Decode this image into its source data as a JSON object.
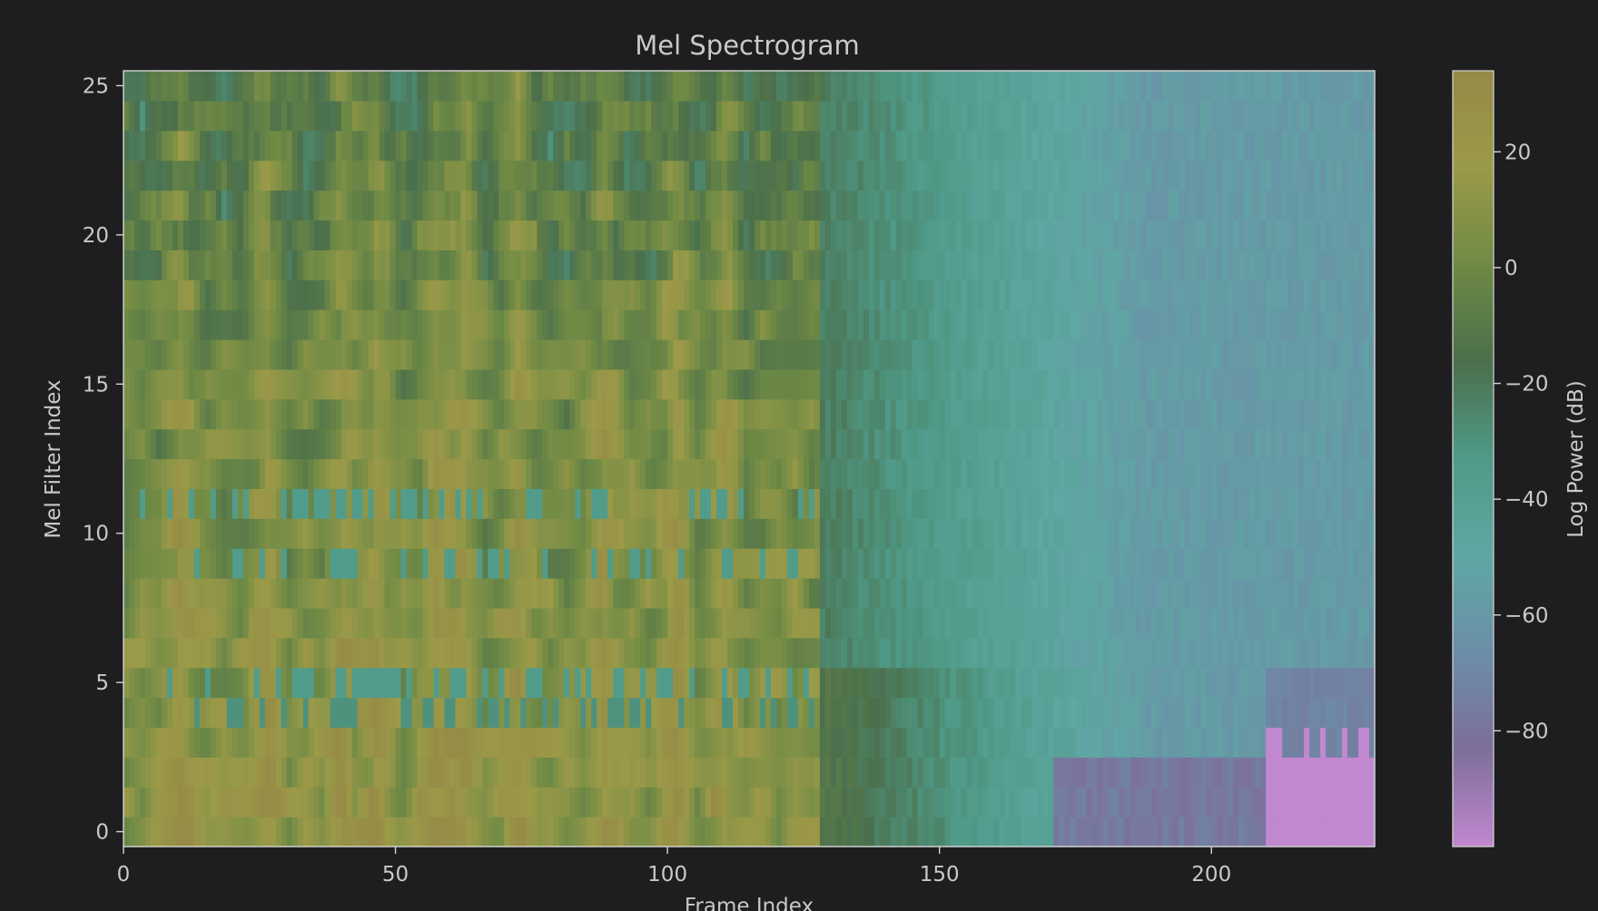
{
  "chart_data": {
    "type": "heatmap",
    "title": "Mel Spectrogram",
    "xlabel": "Frame Index",
    "ylabel": "Mel Filter Index",
    "colorbar_label": "Log Power (dB)",
    "n_frames": 230,
    "n_mels": 26,
    "xlim": [
      0,
      230
    ],
    "ylim": [
      -0.5,
      25.5
    ],
    "color_range": [
      -100,
      34
    ],
    "x_ticks": [
      0,
      50,
      100,
      150,
      200
    ],
    "y_ticks": [
      0,
      5,
      10,
      15,
      20,
      25
    ],
    "colorbar_ticks": [
      20,
      0,
      -20,
      -40,
      -60,
      -80
    ],
    "grid": false,
    "legend": "none",
    "colormap": [
      "#c188cf",
      "#7d6e9a",
      "#6b8ea7",
      "#5fa7a3",
      "#4f9a88",
      "#4b6f4b",
      "#6f8a45",
      "#9b9a48",
      "#958a45"
    ],
    "profile": {
      "active_region_end_frame": 128,
      "quiet_level_db": -58,
      "lowest_level_db": -100,
      "silence_start_frame": 210,
      "silence_top_bin": 3,
      "energy_burst_frames": [
        10,
        26,
        40,
        46,
        57,
        62,
        72,
        88,
        101,
        110
      ]
    }
  }
}
